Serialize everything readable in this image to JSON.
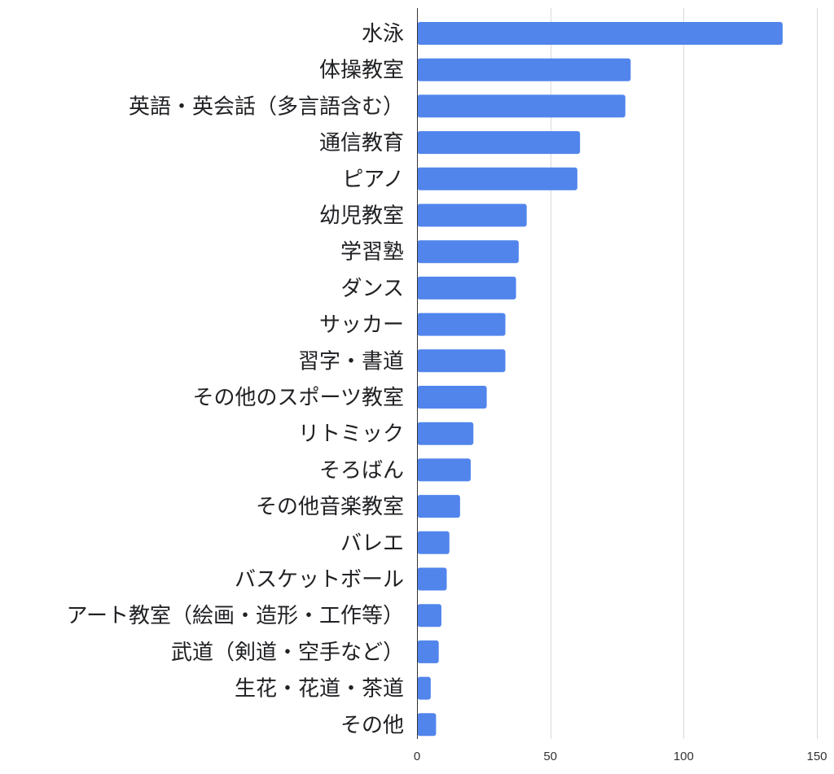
{
  "chart_data": {
    "type": "bar",
    "orientation": "horizontal",
    "title": "",
    "xlabel": "",
    "ylabel": "",
    "xlim": [
      0,
      150
    ],
    "x_ticks": [
      0,
      50,
      100,
      150
    ],
    "grid": true,
    "legend": "none",
    "bar_color": "#5185ec",
    "categories": [
      "水泳",
      "体操教室",
      "英語・英会話（多言語含む）",
      "通信教育",
      "ピアノ",
      "幼児教室",
      "学習塾",
      "ダンス",
      "サッカー",
      "習字・書道",
      "その他のスポーツ教室",
      "リトミック",
      "そろばん",
      "その他音楽教室",
      "バレエ",
      "バスケットボール",
      "アート教室（絵画・造形・工作等）",
      "武道（剣道・空手など）",
      "生花・花道・茶道",
      "その他"
    ],
    "values": [
      137,
      80,
      78,
      61,
      60,
      41,
      38,
      37,
      33,
      33,
      26,
      21,
      20,
      16,
      12,
      11,
      9,
      8,
      5,
      7
    ]
  }
}
